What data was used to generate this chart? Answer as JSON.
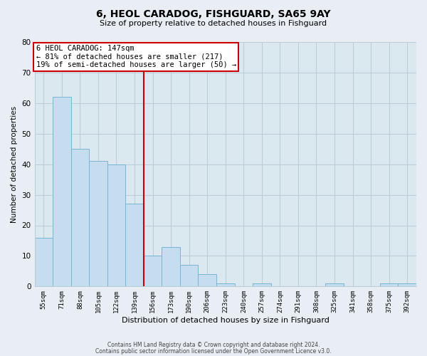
{
  "title": "6, HEOL CARADOG, FISHGUARD, SA65 9AY",
  "subtitle": "Size of property relative to detached houses in Fishguard",
  "xlabel": "Distribution of detached houses by size in Fishguard",
  "ylabel": "Number of detached properties",
  "bar_labels": [
    "55sqm",
    "71sqm",
    "88sqm",
    "105sqm",
    "122sqm",
    "139sqm",
    "156sqm",
    "173sqm",
    "190sqm",
    "206sqm",
    "223sqm",
    "240sqm",
    "257sqm",
    "274sqm",
    "291sqm",
    "308sqm",
    "325sqm",
    "341sqm",
    "358sqm",
    "375sqm",
    "392sqm"
  ],
  "bar_heights": [
    16,
    62,
    45,
    41,
    40,
    27,
    10,
    13,
    7,
    4,
    1,
    0,
    1,
    0,
    0,
    0,
    1,
    0,
    0,
    1,
    1
  ],
  "bar_color": "#c5ddef",
  "bar_edge_color": "#7ab3d4",
  "vline_x": 6.0,
  "vline_color": "#cc0000",
  "annotation_title": "6 HEOL CARADOG: 147sqm",
  "annotation_line1": "← 81% of detached houses are smaller (217)",
  "annotation_line2": "19% of semi-detached houses are larger (50) →",
  "annotation_box_color": "#ffffff",
  "annotation_box_edge": "#cc0000",
  "ylim": [
    0,
    80
  ],
  "yticks": [
    0,
    10,
    20,
    30,
    40,
    50,
    60,
    70,
    80
  ],
  "footer_line1": "Contains HM Land Registry data © Crown copyright and database right 2024.",
  "footer_line2": "Contains public sector information licensed under the Open Government Licence v3.0.",
  "background_color": "#e8eef4",
  "plot_background_color": "#dce8f0",
  "grid_color": "#b8ccd8"
}
